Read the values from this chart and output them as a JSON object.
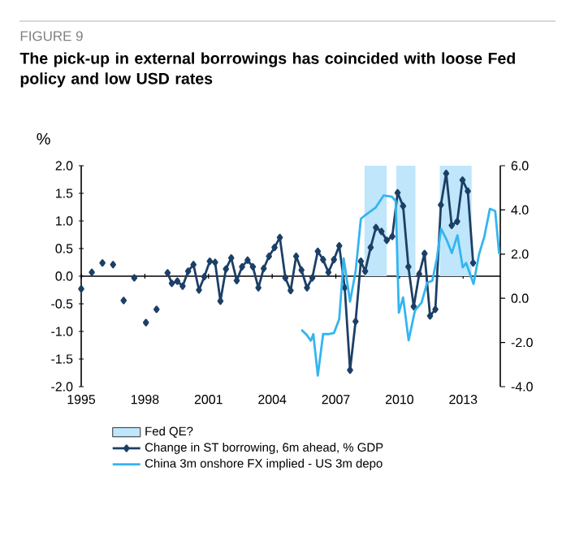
{
  "chart_data": {
    "type": "line",
    "title": "The pick-up in external borrowings has coincided with loose Fed policy and low USD rates",
    "annotations": [
      "FIGURE 9"
    ],
    "ylabel": "%",
    "xlim": [
      1995,
      2014.75
    ],
    "xticks": [
      1995,
      1998,
      2001,
      2004,
      2007,
      2010,
      2013
    ],
    "ylim": [
      -2,
      2
    ],
    "yticks": [
      {
        "value": -2,
        "label": "-2.0"
      },
      {
        "value": -1.5,
        "label": "-1.5"
      },
      {
        "value": -1,
        "label": "-1.0"
      },
      {
        "value": -0.5,
        "label": "-0.5"
      },
      {
        "value": 0,
        "label": "0.0"
      },
      {
        "value": 0.5,
        "label": "0.5"
      },
      {
        "value": 1,
        "label": "1.0"
      },
      {
        "value": 1.5,
        "label": "1.5"
      },
      {
        "value": 2,
        "label": "2.0"
      }
    ],
    "y2lim": [
      -4,
      6
    ],
    "y2ticks": [
      {
        "value": -4,
        "label": "-4.0"
      },
      {
        "value": -2,
        "label": "-2.0"
      },
      {
        "value": 0,
        "label": "0.0"
      },
      {
        "value": 2,
        "label": "2.0"
      },
      {
        "value": 4,
        "label": "4.0"
      },
      {
        "value": 6,
        "label": "6.0"
      }
    ],
    "legend": "bottom",
    "bands": [
      {
        "axis": "x",
        "from": 2008.35,
        "to": 2009.4,
        "label": "Fed QE?",
        "color": "#bfe6fa"
      },
      {
        "axis": "x",
        "from": 2009.85,
        "to": 2010.75,
        "color": "#bfe6fa"
      },
      {
        "axis": "x",
        "from": 2011.9,
        "to": 2013.4,
        "color": "#bfe6fa"
      }
    ],
    "series": [
      {
        "name": "Change in ST borrowing, 6m ahead, % GDP",
        "color": "#1c3f66",
        "marker": "diamond",
        "x": [
          1995.0,
          1995.25,
          1995.5,
          1995.75,
          1996.0,
          1996.25,
          1996.5,
          1996.75,
          1997.0,
          1997.25,
          1997.5,
          1997.75,
          1998.05,
          1998.3,
          1998.55,
          1998.8,
          1999.07,
          1999.27,
          1999.53,
          1999.78,
          2000.04,
          2000.29,
          2000.55,
          2000.8,
          2001.06,
          2001.31,
          2001.56,
          2001.82,
          2002.07,
          2002.33,
          2002.58,
          2002.84,
          2003.09,
          2003.35,
          2003.6,
          2003.85,
          2004.11,
          2004.36,
          2004.62,
          2004.87,
          2005.13,
          2005.38,
          2005.64,
          2005.89,
          2006.15,
          2006.4,
          2006.65,
          2006.91,
          2007.16,
          2007.42,
          2007.67,
          2007.93,
          2008.18,
          2008.38,
          2008.64,
          2008.89,
          2009.15,
          2009.4,
          2009.66,
          2009.91,
          2010.17,
          2010.42,
          2010.67,
          2010.93,
          2011.18,
          2011.44,
          2011.69,
          2011.95,
          2012.2,
          2012.46,
          2012.72,
          2012.97,
          2013.22,
          2013.47
        ],
        "values": [
          -0.23,
          null,
          0.07,
          null,
          0.24,
          null,
          0.21,
          null,
          -0.44,
          null,
          -0.03,
          null,
          -0.84,
          null,
          -0.6,
          null,
          0.06,
          -0.13,
          -0.09,
          -0.18,
          0.09,
          0.21,
          -0.25,
          -0.01,
          0.27,
          0.25,
          -0.45,
          0.13,
          0.33,
          -0.08,
          0.17,
          0.29,
          0.17,
          -0.21,
          0.14,
          0.36,
          0.52,
          0.7,
          -0.03,
          -0.26,
          0.36,
          0.11,
          -0.21,
          -0.03,
          0.45,
          0.3,
          0.07,
          0.3,
          0.55,
          -0.21,
          -1.7,
          -0.82,
          0.27,
          0.09,
          0.52,
          0.88,
          0.81,
          0.65,
          0.72,
          1.51,
          1.27,
          0.17,
          -0.55,
          0.04,
          0.41,
          -0.72,
          -0.6,
          1.29,
          1.86,
          0.92,
          0.99,
          1.74,
          1.54,
          0.24
        ]
      },
      {
        "name": "China 3m onshore FX implied - US 3m depo",
        "color": "#33b5f0",
        "axis": "y2",
        "x": [
          2005.38,
          2005.64,
          2005.82,
          2005.94,
          2006.15,
          2006.4,
          2006.65,
          2006.91,
          2007.16,
          2007.37,
          2007.67,
          2007.93,
          2008.18,
          2008.44,
          2008.87,
          2009.25,
          2009.64,
          2009.82,
          2009.97,
          2010.17,
          2010.43,
          2010.73,
          2011.04,
          2011.3,
          2011.55,
          2011.76,
          2011.96,
          2012.22,
          2012.47,
          2012.73,
          2012.98,
          2013.14,
          2013.49,
          2013.75,
          2014.0,
          2014.26,
          2014.51,
          2014.7
        ],
        "values": [
          -1.43,
          -1.67,
          -1.92,
          -1.62,
          -3.5,
          -1.62,
          -1.62,
          -1.57,
          -0.94,
          1.8,
          -0.15,
          1.2,
          3.6,
          3.8,
          4.1,
          4.65,
          4.6,
          4.4,
          -0.65,
          0.04,
          -1.9,
          -0.55,
          -0.2,
          0.7,
          0.8,
          1.8,
          3.15,
          2.65,
          2.05,
          2.85,
          1.4,
          1.6,
          0.65,
          2.0,
          2.8,
          4.05,
          3.95,
          2.0
        ]
      }
    ]
  }
}
